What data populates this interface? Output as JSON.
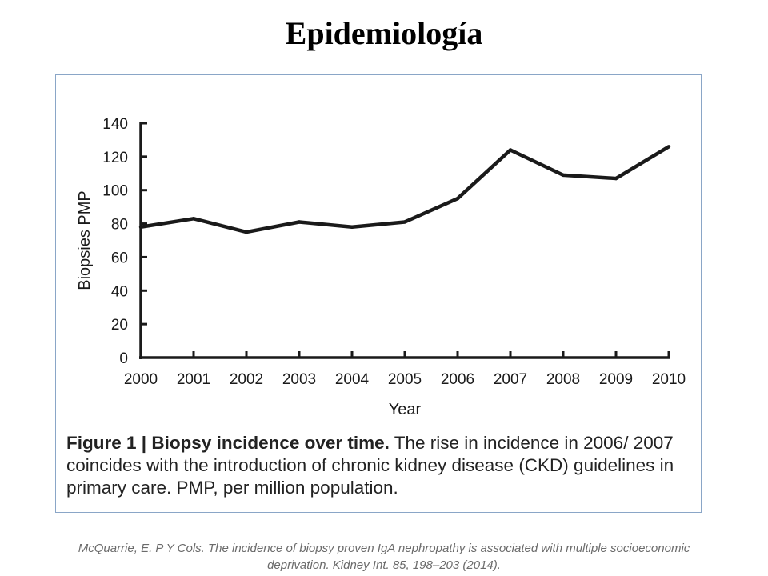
{
  "slide": {
    "title": "Epidemiología",
    "citation_line1": "McQuarrie, E. P Y Cols. The incidence of biopsy proven IgA nephropathy is associated with multiple socioeconomic",
    "citation_line2": "deprivation. Kidney Int. 85, 198–203 (2014)."
  },
  "figure": {
    "caption_bold": "Figure 1 | Biopsy incidence over time.",
    "caption_text": " The rise in incidence in 2006/ 2007 coincides with the introduction of chronic kidney disease (CKD) guidelines in primary care. PMP, per million population."
  },
  "colors": {
    "line": "#1a1a1a",
    "frame_border": "#8aa6c7"
  },
  "chart_data": {
    "type": "line",
    "title": "",
    "xlabel": "Year",
    "ylabel": "Biopsies PMP",
    "x": [
      "2000",
      "2001",
      "2002",
      "2003",
      "2004",
      "2005",
      "2006",
      "2007",
      "2008",
      "2009",
      "2010"
    ],
    "series": [
      {
        "values": [
          78,
          83,
          75,
          81,
          78,
          81,
          95,
          124,
          109,
          107,
          126
        ]
      }
    ],
    "ylim": [
      0,
      140
    ],
    "yticks": [
      0,
      20,
      40,
      60,
      80,
      100,
      120,
      140
    ],
    "grid": false,
    "legend": "none"
  }
}
